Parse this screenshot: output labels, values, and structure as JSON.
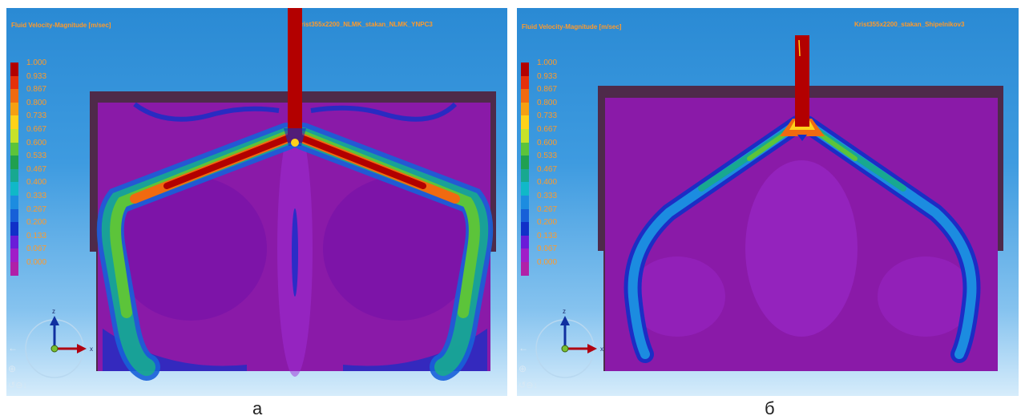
{
  "panels": [
    {
      "title": "Fluid Velocity-Magnitude  [m/sec]",
      "case_name": "Krist355x2200_NLMK_stakan_NLMK_YNPC3",
      "caption": "а"
    },
    {
      "title": "Fluid Velocity-Magnitude  [m/sec]",
      "case_name": "Krist355x2200_stakan_Shipelnikov3",
      "caption": "б"
    }
  ],
  "legend": {
    "labels": [
      "1.000",
      "0.933",
      "0.867",
      "0.800",
      "0.733",
      "0.667",
      "0.600",
      "0.533",
      "0.467",
      "0.400",
      "0.333",
      "0.267",
      "0.200",
      "0.133",
      "0.067",
      "0.000"
    ],
    "colors": [
      "#b20000",
      "#e5300a",
      "#f06a10",
      "#f5a012",
      "#ffd21a",
      "#c7e22a",
      "#5cc43a",
      "#20a050",
      "#18a890",
      "#10b8c8",
      "#1c8ce0",
      "#1760d8",
      "#1030c8",
      "#6a1cd8",
      "#a01ec8",
      "#b020a8"
    ]
  },
  "axes": {
    "z_label": "z",
    "x_label": "x"
  },
  "colors": {
    "background_top": "#2a8ad4",
    "background_bottom": "#d6ecfb",
    "mold_fill": "#8a1aa8",
    "mold_frame": "#4e2a4a",
    "jet_core": "#b30000",
    "text_orange": "#ff9a2a"
  }
}
